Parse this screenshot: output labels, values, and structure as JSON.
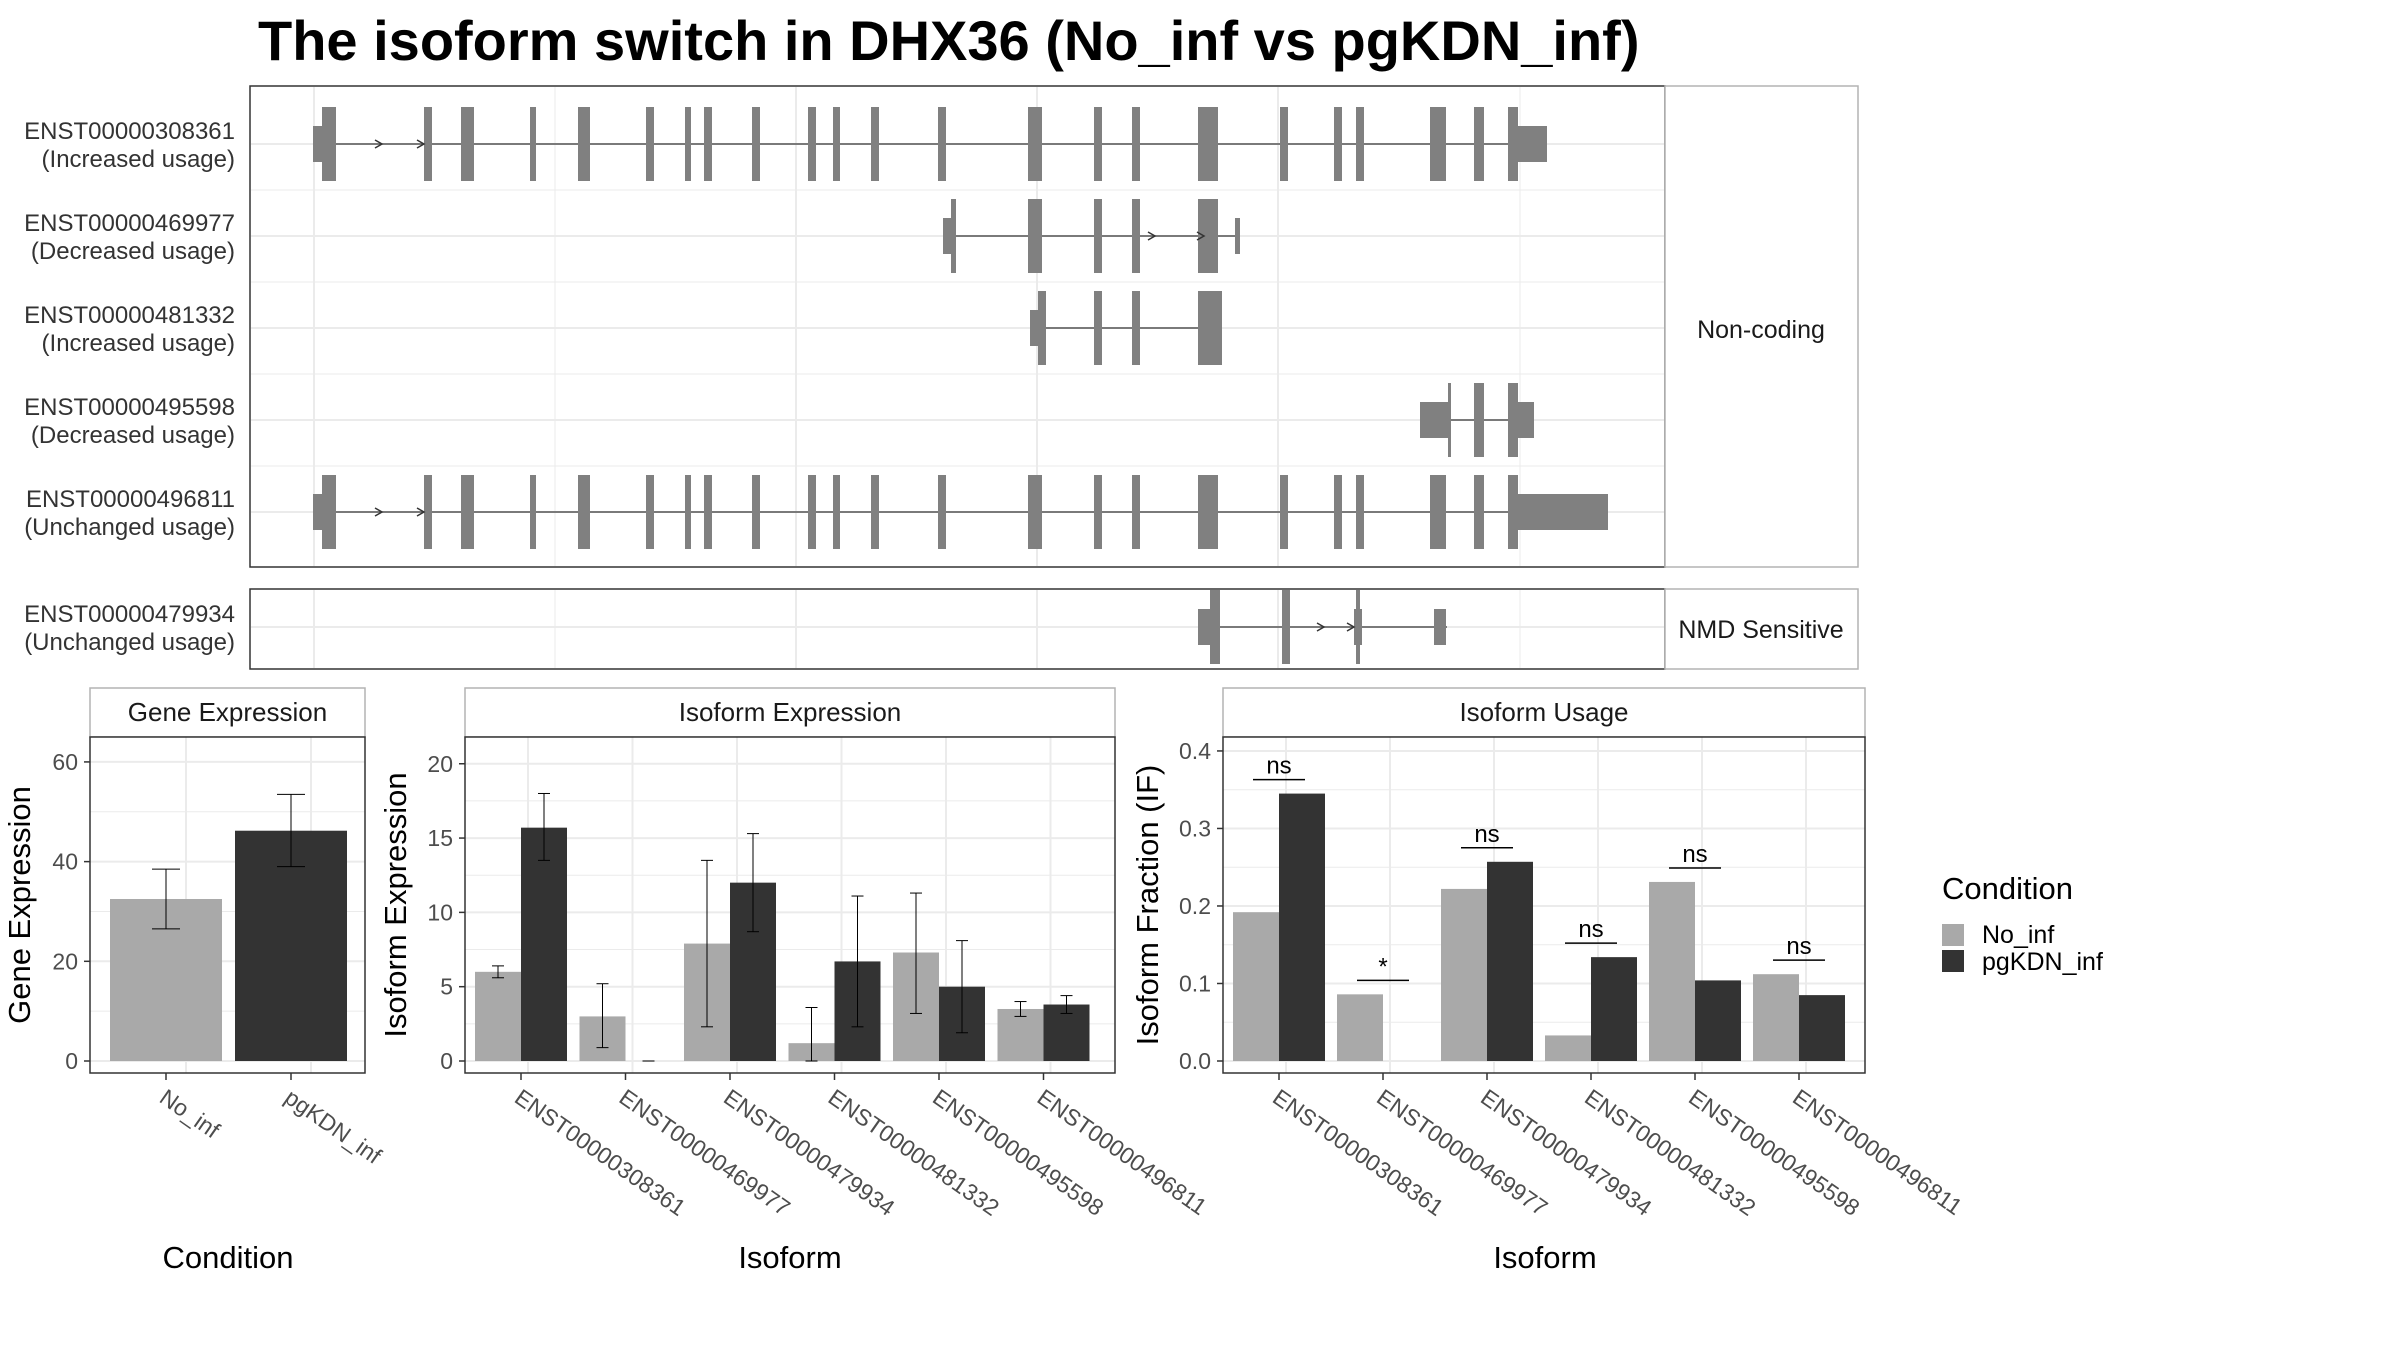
{
  "title": "The isoform switch in DHX36 (No_inf vs pgKDN_inf)",
  "colors": {
    "no_inf": "#a9a9a9",
    "pgkdn_inf": "#333333",
    "exon": "#808080",
    "grid": "#ebebeb",
    "border": "#333333",
    "strip_border": "#b3b3b3"
  },
  "transcripts": {
    "groups": [
      {
        "label": "Non-coding",
        "isoforms": [
          {
            "id": "ENST00000308361",
            "usage": "(Increased usage)"
          },
          {
            "id": "ENST00000469977",
            "usage": "(Decreased usage)"
          },
          {
            "id": "ENST00000481332",
            "usage": "(Increased usage)"
          },
          {
            "id": "ENST00000495598",
            "usage": "(Decreased usage)"
          },
          {
            "id": "ENST00000496811",
            "usage": "(Unchanged usage)"
          }
        ]
      },
      {
        "label": "NMD Sensitive",
        "isoforms": [
          {
            "id": "ENST00000479934",
            "usage": "(Unchanged usage)"
          }
        ]
      }
    ]
  },
  "legend": {
    "title": "Condition",
    "items": [
      {
        "label": "No_inf",
        "color": "#a9a9a9"
      },
      {
        "label": "pgKDN_inf",
        "color": "#333333"
      }
    ]
  },
  "chart_data": [
    {
      "type": "bar",
      "title": "Gene Expression",
      "xlabel": "Condition",
      "ylabel": "Gene Expression",
      "categories": [
        "No_inf",
        "pgKDN_inf"
      ],
      "values": [
        32.5,
        46.2
      ],
      "error_low": [
        26.5,
        39
      ],
      "error_high": [
        38.5,
        53.5
      ],
      "yticks": [
        "0",
        "20",
        "40",
        "60"
      ],
      "ylim": [
        0,
        65
      ]
    },
    {
      "type": "bar",
      "title": "Isoform Expression",
      "xlabel": "Isoform",
      "ylabel": "Isoform Expression",
      "categories": [
        "ENST00000308361",
        "ENST00000469977",
        "ENST00000479934",
        "ENST00000481332",
        "ENST00000495598",
        "ENST00000496811"
      ],
      "series": [
        {
          "name": "No_inf",
          "values": [
            6.0,
            3.0,
            7.9,
            1.2,
            7.3,
            3.5
          ],
          "error_low": [
            5.6,
            0.9,
            2.3,
            0,
            3.2,
            3.0
          ],
          "error_high": [
            6.4,
            5.2,
            13.5,
            3.6,
            11.3,
            4.0
          ]
        },
        {
          "name": "pgKDN_inf",
          "values": [
            15.7,
            0,
            12.0,
            6.7,
            5.0,
            3.8
          ],
          "error_low": [
            13.5,
            0,
            8.7,
            2.3,
            1.9,
            3.2
          ],
          "error_high": [
            18.0,
            0,
            15.3,
            11.1,
            8.1,
            4.4
          ]
        }
      ],
      "yticks": [
        "0",
        "5",
        "10",
        "15",
        "20"
      ],
      "ylim": [
        0,
        21.8
      ]
    },
    {
      "type": "bar",
      "title": "Isoform Usage",
      "xlabel": "Isoform",
      "ylabel": "Isoform Fraction (IF)",
      "categories": [
        "ENST00000308361",
        "ENST00000469977",
        "ENST00000479934",
        "ENST00000481332",
        "ENST00000495598",
        "ENST00000496811"
      ],
      "series": [
        {
          "name": "No_inf",
          "values": [
            0.192,
            0.086,
            0.222,
            0.033,
            0.231,
            0.112
          ]
        },
        {
          "name": "pgKDN_inf",
          "values": [
            0.345,
            0.0,
            0.257,
            0.134,
            0.104,
            0.085
          ]
        }
      ],
      "significance": [
        "ns",
        "*",
        "ns",
        "ns",
        "ns",
        "ns"
      ],
      "yticks": [
        "0.0",
        "0.1",
        "0.2",
        "0.3",
        "0.4"
      ],
      "ylim": [
        0,
        0.418
      ]
    }
  ]
}
